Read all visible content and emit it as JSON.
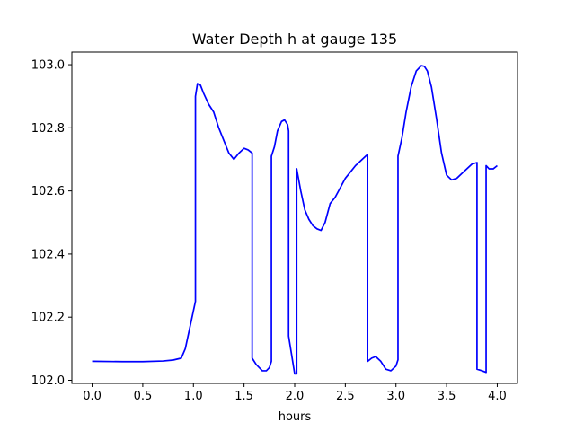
{
  "chart_data": {
    "type": "line",
    "title": "Water Depth h at gauge 135",
    "xlabel": "hours",
    "ylabel": "",
    "xlim": [
      -0.2,
      4.2
    ],
    "ylim": [
      101.99,
      103.04
    ],
    "grid": false,
    "xticks": [
      0.0,
      0.5,
      1.0,
      1.5,
      2.0,
      2.5,
      3.0,
      3.5,
      4.0
    ],
    "xtick_labels": [
      "0.0",
      "0.5",
      "1.0",
      "1.5",
      "2.0",
      "2.5",
      "3.0",
      "3.5",
      "4.0"
    ],
    "yticks": [
      102.0,
      102.2,
      102.4,
      102.6,
      102.8,
      103.0
    ],
    "ytick_labels": [
      "102.0",
      "102.2",
      "102.4",
      "102.6",
      "102.8",
      "103.0"
    ],
    "series": [
      {
        "color": "#0000ff",
        "x": [
          0.0,
          0.3,
          0.5,
          0.7,
          0.8,
          0.88,
          0.92,
          0.96,
          1.0,
          1.02,
          1.02,
          1.04,
          1.07,
          1.1,
          1.15,
          1.2,
          1.25,
          1.3,
          1.35,
          1.4,
          1.45,
          1.5,
          1.54,
          1.58,
          1.58,
          1.62,
          1.68,
          1.72,
          1.75,
          1.77,
          1.77,
          1.8,
          1.83,
          1.87,
          1.9,
          1.93,
          1.94,
          1.94,
          1.97,
          2.0,
          2.02,
          2.02,
          2.06,
          2.1,
          2.14,
          2.18,
          2.22,
          2.26,
          2.3,
          2.35,
          2.4,
          2.45,
          2.5,
          2.55,
          2.6,
          2.65,
          2.7,
          2.72,
          2.72,
          2.76,
          2.8,
          2.85,
          2.9,
          2.95,
          3.0,
          3.02,
          3.02,
          3.06,
          3.1,
          3.15,
          3.2,
          3.25,
          3.28,
          3.31,
          3.35,
          3.4,
          3.45,
          3.5,
          3.55,
          3.6,
          3.65,
          3.7,
          3.75,
          3.8,
          3.8,
          3.85,
          3.89,
          3.89,
          3.92,
          3.96,
          4.0
        ],
        "values": [
          102.06,
          102.059,
          102.059,
          102.061,
          102.064,
          102.07,
          102.1,
          102.16,
          102.22,
          102.25,
          102.9,
          102.94,
          102.935,
          102.91,
          102.875,
          102.85,
          102.8,
          102.76,
          102.72,
          102.7,
          102.72,
          102.735,
          102.73,
          102.72,
          102.07,
          102.05,
          102.03,
          102.03,
          102.04,
          102.06,
          102.71,
          102.74,
          102.79,
          102.82,
          102.825,
          102.81,
          102.79,
          102.14,
          102.08,
          102.02,
          102.02,
          102.67,
          102.6,
          102.54,
          102.51,
          102.49,
          102.48,
          102.475,
          102.5,
          102.56,
          102.58,
          102.61,
          102.64,
          102.66,
          102.68,
          102.695,
          102.71,
          102.715,
          102.06,
          102.07,
          102.075,
          102.06,
          102.035,
          102.03,
          102.045,
          102.065,
          102.71,
          102.77,
          102.85,
          102.93,
          102.98,
          102.997,
          102.995,
          102.98,
          102.93,
          102.83,
          102.72,
          102.65,
          102.635,
          102.64,
          102.655,
          102.67,
          102.685,
          102.69,
          102.035,
          102.03,
          102.025,
          102.68,
          102.67,
          102.67,
          102.68
        ]
      }
    ]
  }
}
